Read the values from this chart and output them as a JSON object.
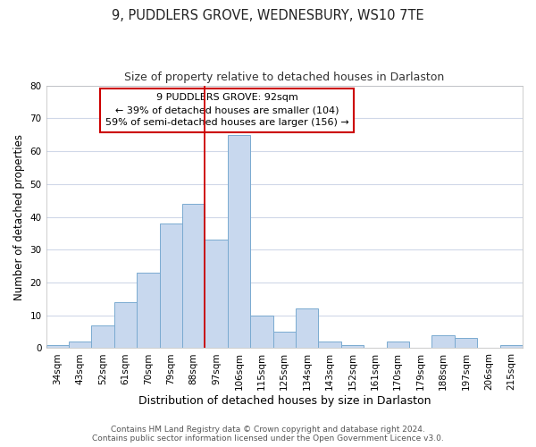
{
  "title": "9, PUDDLERS GROVE, WEDNESBURY, WS10 7TE",
  "subtitle": "Size of property relative to detached houses in Darlaston",
  "xlabel": "Distribution of detached houses by size in Darlaston",
  "ylabel": "Number of detached properties",
  "categories": [
    "34sqm",
    "43sqm",
    "52sqm",
    "61sqm",
    "70sqm",
    "79sqm",
    "88sqm",
    "97sqm",
    "106sqm",
    "115sqm",
    "125sqm",
    "134sqm",
    "143sqm",
    "152sqm",
    "161sqm",
    "170sqm",
    "179sqm",
    "188sqm",
    "197sqm",
    "206sqm",
    "215sqm"
  ],
  "values": [
    1,
    2,
    7,
    14,
    23,
    38,
    44,
    33,
    65,
    10,
    5,
    12,
    2,
    1,
    0,
    2,
    0,
    4,
    3,
    0,
    1
  ],
  "bar_color": "#c8d8ee",
  "bar_edge_color": "#7aaad0",
  "vline_color": "#cc0000",
  "ylim": [
    0,
    80
  ],
  "yticks": [
    0,
    10,
    20,
    30,
    40,
    50,
    60,
    70,
    80
  ],
  "annotation_line1": "9 PUDDLERS GROVE: 92sqm",
  "annotation_line2": "← 39% of detached houses are smaller (104)",
  "annotation_line3": "59% of semi-detached houses are larger (156) →",
  "annotation_box_color": "#ffffff",
  "annotation_border_color": "#cc0000",
  "footer_line1": "Contains HM Land Registry data © Crown copyright and database right 2024.",
  "footer_line2": "Contains public sector information licensed under the Open Government Licence v3.0.",
  "background_color": "#ffffff",
  "plot_bg_color": "#ffffff",
  "grid_color": "#d0d8e8",
  "title_fontsize": 10.5,
  "subtitle_fontsize": 9,
  "ylabel_fontsize": 8.5,
  "xlabel_fontsize": 9,
  "tick_fontsize": 7.5,
  "annotation_fontsize": 8,
  "footer_fontsize": 6.5
}
